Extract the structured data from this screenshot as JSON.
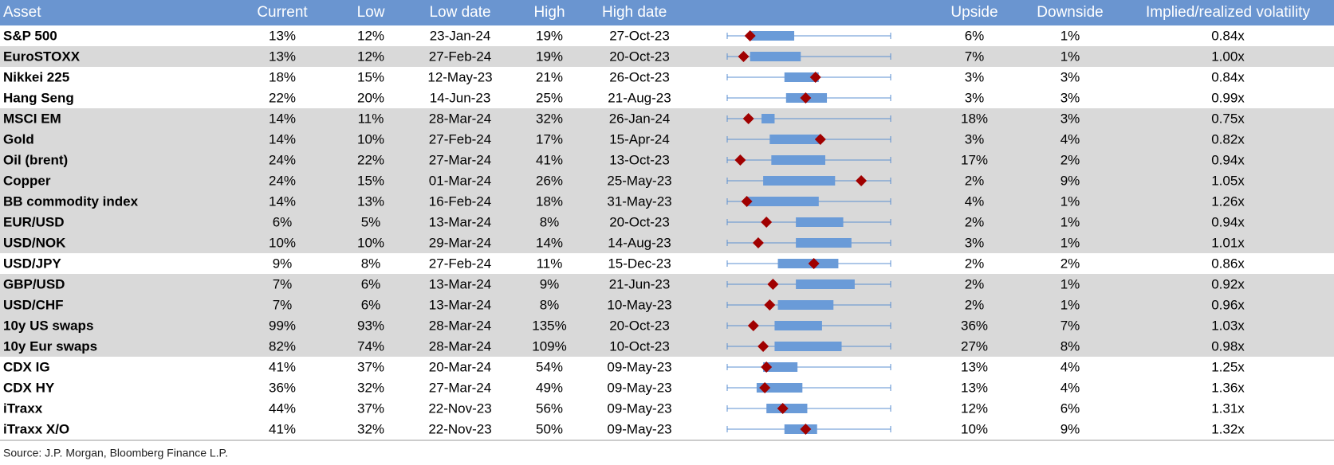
{
  "table": {
    "columns": [
      "Asset",
      "Current",
      "Low",
      "Low date",
      "High",
      "High date",
      "Upside",
      "Downside",
      "Implied/realized volatility"
    ],
    "rows": [
      {
        "cells": [
          "S&P 500",
          "13%",
          "12%",
          "23-Jan-24",
          "19%",
          "27-Oct-23",
          "6%",
          "1%",
          "0.84x"
        ],
        "shaded": false,
        "range": {
          "box": [
            14,
            41
          ],
          "marker": 14
        }
      },
      {
        "cells": [
          "EuroSTOXX",
          "13%",
          "12%",
          "27-Feb-24",
          "19%",
          "20-Oct-23",
          "7%",
          "1%",
          "1.00x"
        ],
        "shaded": true,
        "range": {
          "box": [
            14,
            45
          ],
          "marker": 10
        }
      },
      {
        "cells": [
          "Nikkei 225",
          "18%",
          "15%",
          "12-May-23",
          "21%",
          "26-Oct-23",
          "3%",
          "3%",
          "0.84x"
        ],
        "shaded": false,
        "range": {
          "box": [
            35,
            56
          ],
          "marker": 54
        }
      },
      {
        "cells": [
          "Hang Seng",
          "22%",
          "20%",
          "14-Jun-23",
          "25%",
          "21-Aug-23",
          "3%",
          "3%",
          "0.99x"
        ],
        "shaded": false,
        "range": {
          "box": [
            36,
            61
          ],
          "marker": 48
        }
      },
      {
        "cells": [
          "MSCI EM",
          "14%",
          "11%",
          "28-Mar-24",
          "32%",
          "26-Jan-24",
          "18%",
          "3%",
          "0.75x"
        ],
        "shaded": true,
        "range": {
          "box": [
            21,
            29
          ],
          "marker": 13
        }
      },
      {
        "cells": [
          "Gold",
          "14%",
          "10%",
          "27-Feb-24",
          "17%",
          "15-Apr-24",
          "3%",
          "4%",
          "0.82x"
        ],
        "shaded": true,
        "range": {
          "box": [
            26,
            57
          ],
          "marker": 57
        }
      },
      {
        "cells": [
          "Oil (brent)",
          "24%",
          "22%",
          "27-Mar-24",
          "41%",
          "13-Oct-23",
          "17%",
          "2%",
          "0.94x"
        ],
        "shaded": true,
        "range": {
          "box": [
            27,
            60
          ],
          "marker": 8
        }
      },
      {
        "cells": [
          "Copper",
          "24%",
          "15%",
          "01-Mar-24",
          "26%",
          "25-May-23",
          "2%",
          "9%",
          "1.05x"
        ],
        "shaded": true,
        "range": {
          "box": [
            22,
            66
          ],
          "marker": 82
        }
      },
      {
        "cells": [
          "BB commodity index",
          "14%",
          "13%",
          "16-Feb-24",
          "18%",
          "31-May-23",
          "4%",
          "1%",
          "1.26x"
        ],
        "shaded": true,
        "range": {
          "box": [
            12,
            56
          ],
          "marker": 12
        }
      },
      {
        "cells": [
          "EUR/USD",
          "6%",
          "5%",
          "13-Mar-24",
          "8%",
          "20-Oct-23",
          "2%",
          "1%",
          "0.94x"
        ],
        "shaded": true,
        "range": {
          "box": [
            42,
            71
          ],
          "marker": 24
        }
      },
      {
        "cells": [
          "USD/NOK",
          "10%",
          "10%",
          "29-Mar-24",
          "14%",
          "14-Aug-23",
          "3%",
          "1%",
          "1.01x"
        ],
        "shaded": true,
        "range": {
          "box": [
            42,
            76
          ],
          "marker": 19
        }
      },
      {
        "cells": [
          "USD/JPY",
          "9%",
          "8%",
          "27-Feb-24",
          "11%",
          "15-Dec-23",
          "2%",
          "2%",
          "0.86x"
        ],
        "shaded": false,
        "range": {
          "box": [
            31,
            68
          ],
          "marker": 53
        }
      },
      {
        "cells": [
          "GBP/USD",
          "7%",
          "6%",
          "13-Mar-24",
          "9%",
          "21-Jun-23",
          "2%",
          "1%",
          "0.92x"
        ],
        "shaded": true,
        "range": {
          "box": [
            42,
            78
          ],
          "marker": 28
        }
      },
      {
        "cells": [
          "USD/CHF",
          "7%",
          "6%",
          "13-Mar-24",
          "8%",
          "10-May-23",
          "2%",
          "1%",
          "0.96x"
        ],
        "shaded": true,
        "range": {
          "box": [
            31,
            65
          ],
          "marker": 26
        }
      },
      {
        "cells": [
          "10y US swaps",
          "99%",
          "93%",
          "28-Mar-24",
          "135%",
          "20-Oct-23",
          "36%",
          "7%",
          "1.03x"
        ],
        "shaded": true,
        "range": {
          "box": [
            29,
            58
          ],
          "marker": 16
        }
      },
      {
        "cells": [
          "10y Eur swaps",
          "82%",
          "74%",
          "28-Mar-24",
          "109%",
          "10-Oct-23",
          "27%",
          "8%",
          "0.98x"
        ],
        "shaded": true,
        "range": {
          "box": [
            29,
            70
          ],
          "marker": 22
        }
      },
      {
        "cells": [
          "CDX IG",
          "41%",
          "37%",
          "20-Mar-24",
          "54%",
          "09-May-23",
          "13%",
          "4%",
          "1.25x"
        ],
        "shaded": false,
        "range": {
          "box": [
            22,
            43
          ],
          "marker": 24
        }
      },
      {
        "cells": [
          "CDX HY",
          "36%",
          "32%",
          "27-Mar-24",
          "49%",
          "09-May-23",
          "13%",
          "4%",
          "1.36x"
        ],
        "shaded": false,
        "range": {
          "box": [
            18,
            46
          ],
          "marker": 23
        }
      },
      {
        "cells": [
          "iTraxx",
          "44%",
          "37%",
          "22-Nov-23",
          "56%",
          "09-May-23",
          "12%",
          "6%",
          "1.31x"
        ],
        "shaded": false,
        "range": {
          "box": [
            24,
            49
          ],
          "marker": 34
        }
      },
      {
        "cells": [
          "iTraxx X/O",
          "41%",
          "32%",
          "22-Nov-23",
          "50%",
          "09-May-23",
          "10%",
          "9%",
          "1.32x"
        ],
        "shaded": false,
        "range": {
          "box": [
            35,
            55
          ],
          "marker": 48
        }
      }
    ]
  },
  "source": "Source: J.P. Morgan, Bloomberg Finance L.P."
}
